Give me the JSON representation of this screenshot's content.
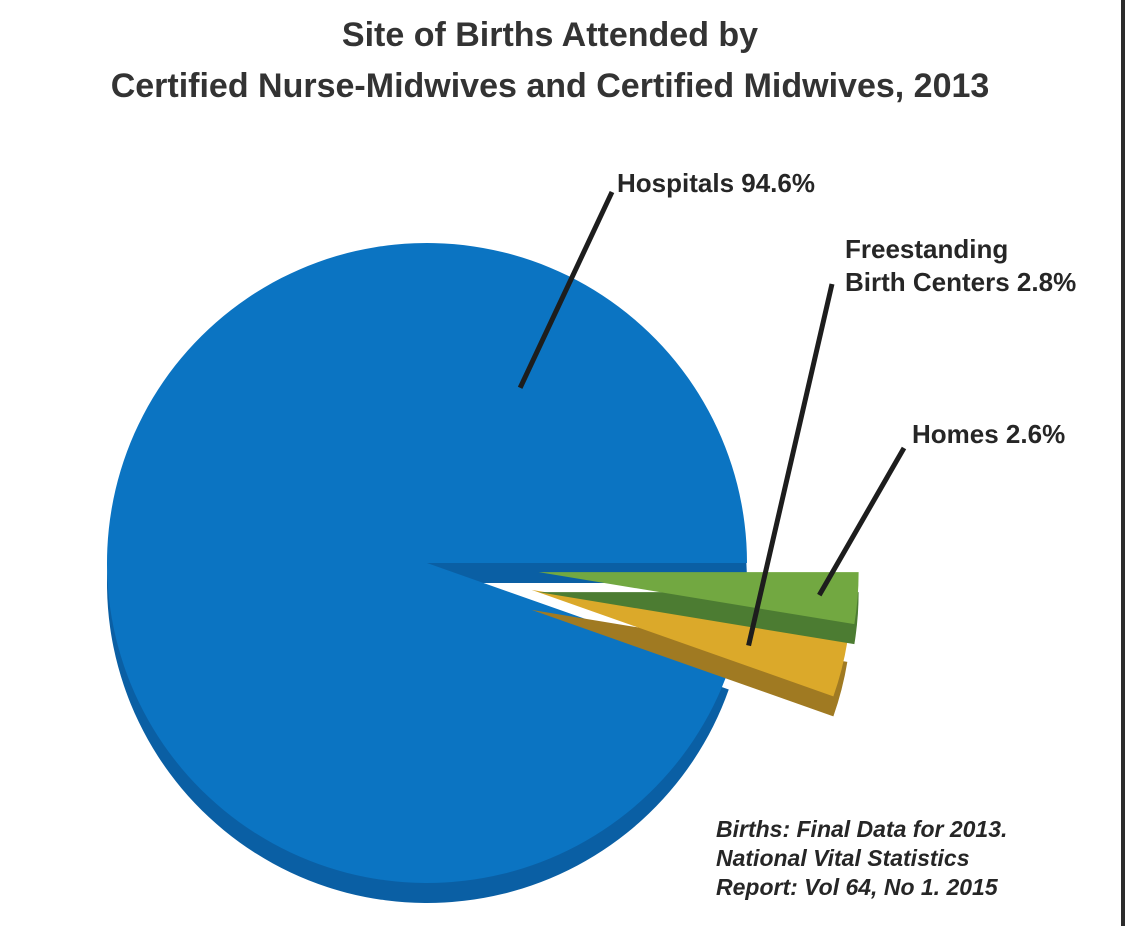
{
  "chart_data": {
    "type": "pie",
    "title": "Site of Births Attended by Certified Nurse-Midwives and Certified Midwives, 2013",
    "title_lines": [
      "Site of Births Attended by",
      "Certified Nurse-Midwives and Certified Midwives, 2013"
    ],
    "units": "%",
    "slices": [
      {
        "name": "Hospitals",
        "value": 94.6,
        "label": "Hospitals 94.6%",
        "label_lines": [
          "Hospitals 94.6%"
        ],
        "color": "#0b74c2",
        "side_color": "#0a5fa4"
      },
      {
        "name": "Freestanding Birth Centers",
        "value": 2.8,
        "label": "Freestanding Birth Centers 2.8%",
        "label_lines": [
          "Freestanding",
          "Birth Centers 2.8%"
        ],
        "color": "#dba92a",
        "side_color": "#a07a22"
      },
      {
        "name": "Homes",
        "value": 2.6,
        "label": "Homes 2.6%",
        "label_lines": [
          "Homes 2.6%"
        ],
        "color": "#72a841",
        "side_color": "#4c7c32"
      }
    ],
    "source_lines": [
      "Births: Final Data for 2013.",
      "National Vital Statistics",
      "Report: Vol 64, No 1. 2015"
    ]
  }
}
